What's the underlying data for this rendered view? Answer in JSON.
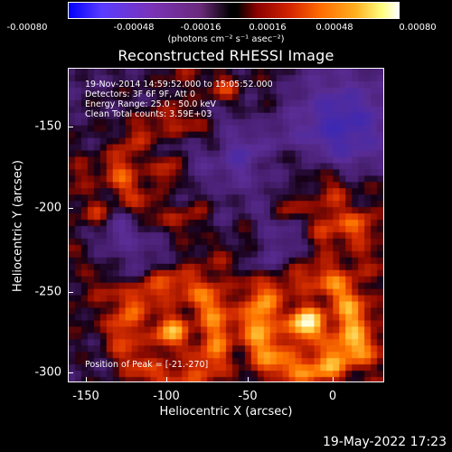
{
  "colorbar": {
    "ticks": [
      "-0.00080",
      "-0.00048",
      "-0.00016",
      "0.00016",
      "0.00048",
      "0.00080"
    ],
    "units_label": "(photons cm⁻² s⁻¹ asec⁻²)",
    "colors": [
      "#0000ff",
      "#7a33b8",
      "#000000",
      "#d32400",
      "#ff6a00",
      "#ffffff"
    ]
  },
  "plot": {
    "title": "Reconstructed RHESSI Image",
    "info_lines": [
      "19-Nov-2014 14:59:52.000 to 15:05:52.000",
      "Detectors: 3F 6F 9F, Att 0",
      "Energy Range: 25.0 - 50.0 keV",
      "Clean     Total counts: 3.59E+03"
    ],
    "peak_label": "Position of Peak = [-21.-270]"
  },
  "axes": {
    "x_title": "Heliocentric X (arcsec)",
    "y_title": "Heliocentric Y (arcsec)",
    "x_ticks": [
      "-150",
      "-100",
      "-50",
      "0"
    ],
    "y_ticks": [
      "-150",
      "-200",
      "-250",
      "-300"
    ],
    "xlim": [
      -160,
      30
    ],
    "ylim": [
      -305,
      -120
    ]
  },
  "footer": {
    "timestamp": "19-May-2022 17:23"
  }
}
